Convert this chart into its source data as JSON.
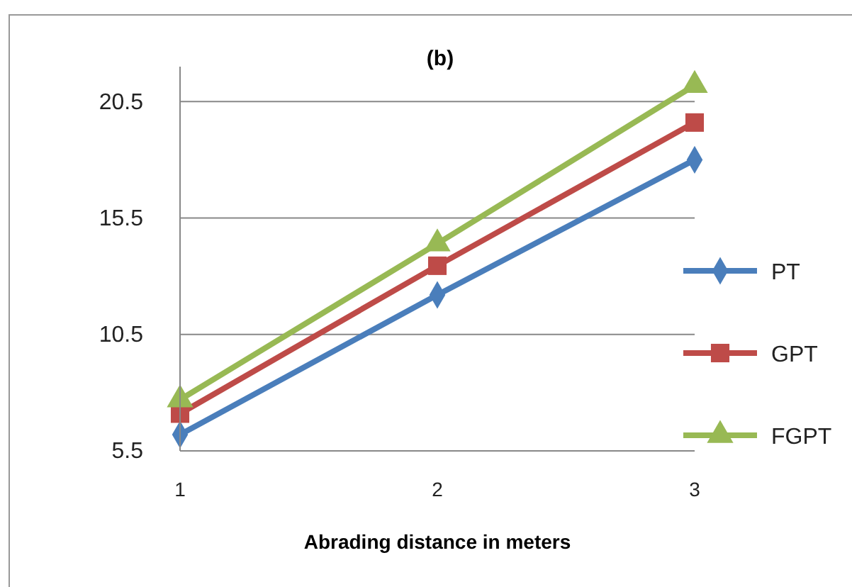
{
  "chart_data": {
    "type": "line",
    "title": "(b)",
    "xlabel": "Abrading distance in meters",
    "x": [
      1,
      2,
      3
    ],
    "xlim": [
      1,
      3
    ],
    "xticks": [
      1,
      2,
      3
    ],
    "ylim": [
      5.5,
      22
    ],
    "yticks": [
      5.5,
      10.5,
      15.5,
      20.5
    ],
    "grid": "y",
    "legend": "right",
    "series": [
      {
        "name": "PT",
        "color": "#4a7ebb",
        "marker": "diamond",
        "values": [
          6.2,
          12.2,
          18.0
        ]
      },
      {
        "name": "GPT",
        "color": "#be4b48",
        "marker": "square",
        "values": [
          7.1,
          13.45,
          19.6
        ]
      },
      {
        "name": "FGPT",
        "color": "#98b954",
        "marker": "triangle",
        "values": [
          7.7,
          14.4,
          21.2
        ]
      }
    ]
  }
}
